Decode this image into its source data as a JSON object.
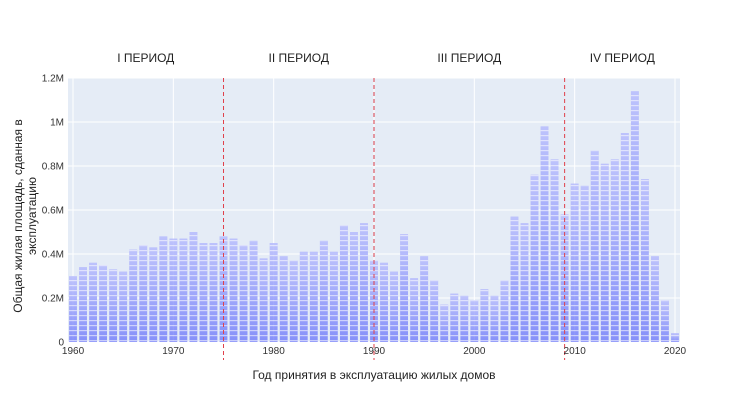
{
  "chart_data": {
    "type": "bar",
    "title": "",
    "xlabel": "Год принятия в эксплуатацию жилых домов",
    "ylabel": "Общая жилая площадь, сданная в эксплуатацию",
    "xlim": [
      1959.5,
      2020.5
    ],
    "ylim": [
      0,
      1200000
    ],
    "x_ticks": [
      1960,
      1970,
      1980,
      1990,
      2000,
      2010,
      2020
    ],
    "x_tick_labels": [
      "1960",
      "1970",
      "1980",
      "1990",
      "2000",
      "2010",
      "2020"
    ],
    "y_ticks": [
      0,
      200000,
      400000,
      600000,
      800000,
      1000000,
      1200000
    ],
    "y_tick_labels": [
      "0",
      "0.2M",
      "0.4M",
      "0.6M",
      "0.8M",
      "1M",
      "1.2M"
    ],
    "grid": true,
    "x": [
      1960,
      1961,
      1962,
      1963,
      1964,
      1965,
      1966,
      1967,
      1968,
      1969,
      1970,
      1971,
      1972,
      1973,
      1974,
      1975,
      1976,
      1977,
      1978,
      1979,
      1980,
      1981,
      1982,
      1983,
      1984,
      1985,
      1986,
      1987,
      1988,
      1989,
      1990,
      1991,
      1992,
      1993,
      1994,
      1995,
      1996,
      1997,
      1998,
      1999,
      2000,
      2001,
      2002,
      2003,
      2004,
      2005,
      2006,
      2007,
      2008,
      2009,
      2010,
      2011,
      2012,
      2013,
      2014,
      2015,
      2016,
      2017,
      2018,
      2019,
      2020
    ],
    "values": [
      300000,
      340000,
      360000,
      350000,
      330000,
      320000,
      420000,
      440000,
      430000,
      480000,
      470000,
      470000,
      500000,
      450000,
      450000,
      480000,
      470000,
      440000,
      460000,
      380000,
      450000,
      390000,
      370000,
      410000,
      410000,
      460000,
      410000,
      530000,
      500000,
      540000,
      370000,
      360000,
      320000,
      490000,
      290000,
      390000,
      280000,
      170000,
      220000,
      210000,
      190000,
      240000,
      210000,
      280000,
      570000,
      540000,
      760000,
      980000,
      830000,
      580000,
      720000,
      710000,
      870000,
      810000,
      830000,
      950000,
      1140000,
      740000,
      390000,
      190000,
      40000
    ],
    "periods": [
      {
        "label": "I ПЕРИОД",
        "start": 1959.5,
        "end": 1975.0
      },
      {
        "label": "II ПЕРИОД",
        "start": 1975.0,
        "end": 1990.0
      },
      {
        "label": "III ПЕРИОД",
        "start": 1990.0,
        "end": 2009.0
      },
      {
        "label": "IV ПЕРИОД",
        "start": 2009.0,
        "end": 2020.5
      }
    ],
    "period_boundaries": [
      1975.0,
      1990.0,
      2009.0
    ],
    "colors": {
      "plot_background": "#e5ecf6",
      "bar_fill": "#636efa",
      "stripe": "#ffffff",
      "grid": "#ffffff",
      "boundary_line": "#e0404a"
    }
  }
}
